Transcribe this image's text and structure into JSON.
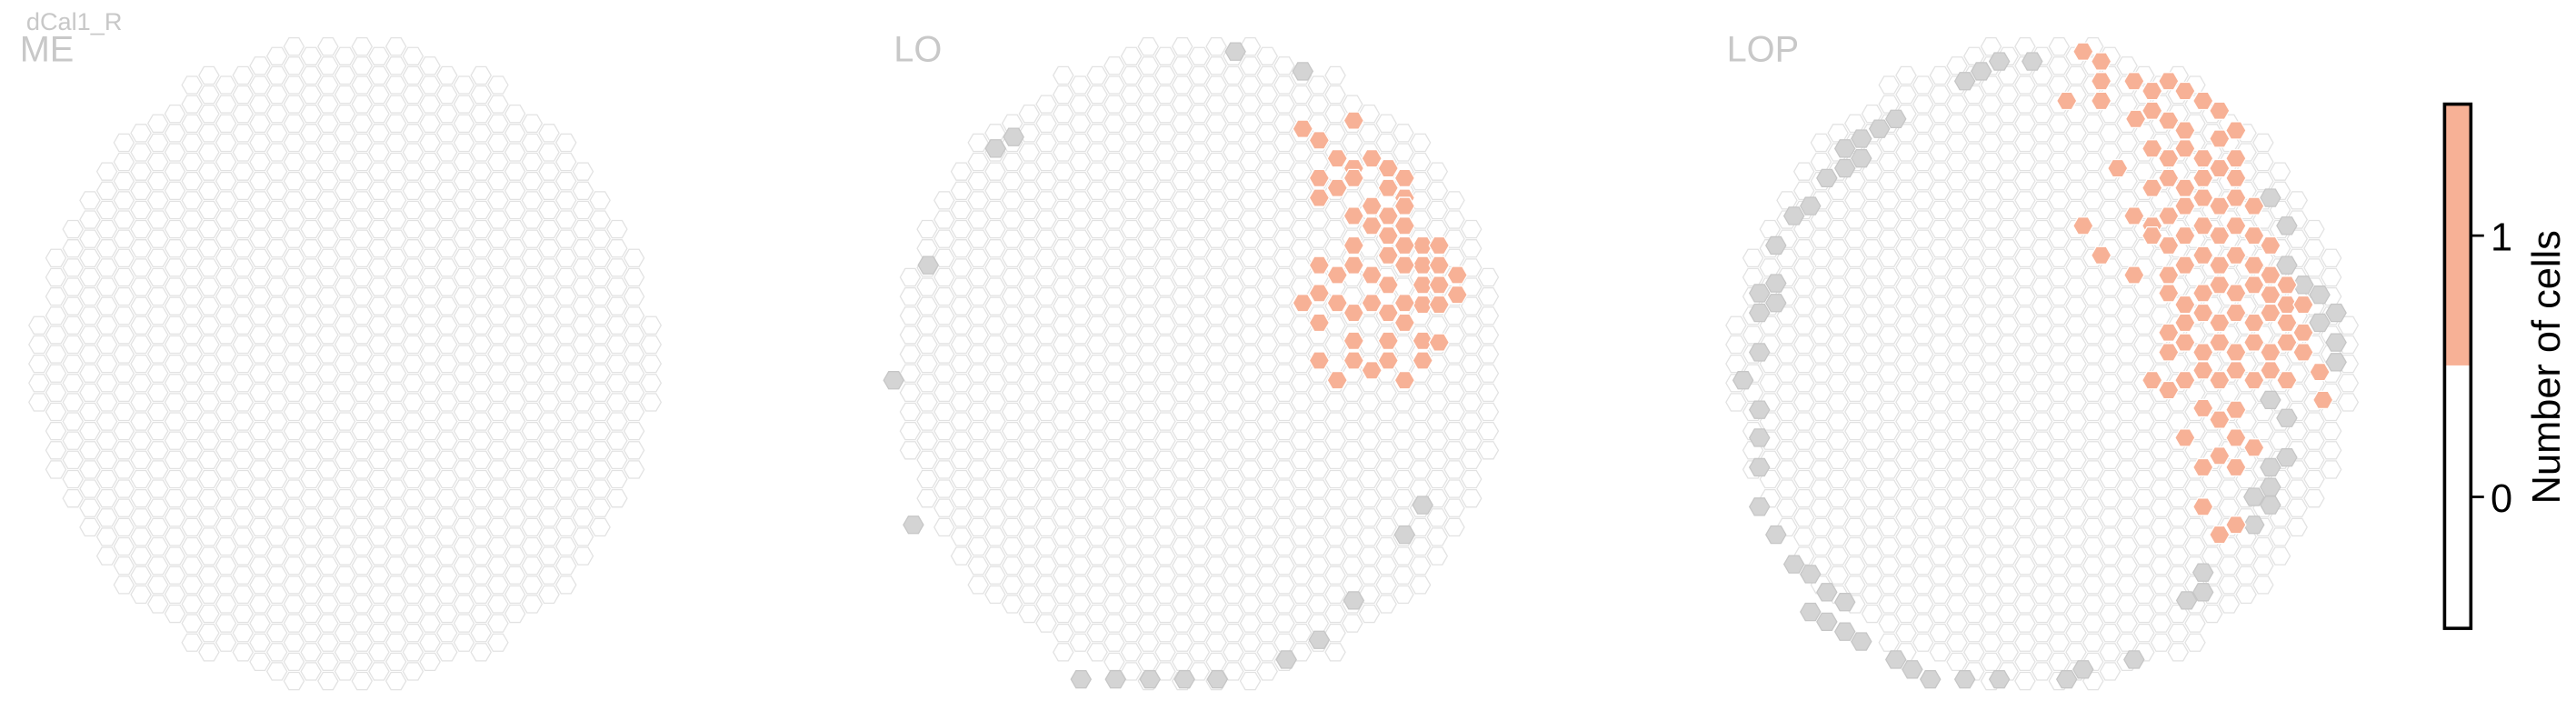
{
  "figure": {
    "title": "dCal1_R"
  },
  "colors": {
    "hex_outline": "#e2e2e2",
    "empty_fill": "#ffffff",
    "gray_fill": "#d4d4d4",
    "one_fill": "#f7b196",
    "cbar_outline": "#000000"
  },
  "chart_data": [
    {
      "type": "heatmap",
      "title": "ME",
      "description_of_cells": "hexagonal eye map; all columns 0 cells",
      "gray_hexes": [],
      "one_hexes": []
    },
    {
      "type": "heatmap",
      "title": "LO",
      "gray_hexes": [
        [
          752,
          28
        ],
        [
          793,
          40
        ],
        [
          606,
          87
        ],
        [
          617,
          80
        ],
        [
          565,
          158
        ],
        [
          544,
          228
        ],
        [
          556,
          316
        ],
        [
          866,
          304
        ],
        [
          855,
          322
        ],
        [
          824,
          362
        ],
        [
          803,
          386
        ],
        [
          783,
          398
        ],
        [
          658,
          410
        ],
        [
          679,
          410
        ],
        [
          700,
          410
        ],
        [
          721,
          410
        ],
        [
          741,
          410
        ]
      ],
      "one_hexes": [
        [
          793,
          75
        ],
        [
          803,
          82
        ],
        [
          824,
          70
        ],
        [
          814,
          93
        ],
        [
          824,
          99
        ],
        [
          835,
          93
        ],
        [
          845,
          99
        ],
        [
          855,
          105
        ],
        [
          803,
          105
        ],
        [
          814,
          111
        ],
        [
          824,
          105
        ],
        [
          845,
          111
        ],
        [
          855,
          117
        ],
        [
          803,
          117
        ],
        [
          824,
          128
        ],
        [
          835,
          122
        ],
        [
          845,
          128
        ],
        [
          855,
          122
        ],
        [
          866,
          146
        ],
        [
          876,
          146
        ],
        [
          835,
          134
        ],
        [
          845,
          140
        ],
        [
          855,
          134
        ],
        [
          866,
          158
        ],
        [
          876,
          158
        ],
        [
          887,
          164
        ],
        [
          824,
          146
        ],
        [
          845,
          152
        ],
        [
          855,
          146
        ],
        [
          866,
          170
        ],
        [
          876,
          170
        ],
        [
          803,
          158
        ],
        [
          814,
          164
        ],
        [
          824,
          158
        ],
        [
          835,
          164
        ],
        [
          845,
          170
        ],
        [
          855,
          158
        ],
        [
          866,
          182
        ],
        [
          876,
          182
        ],
        [
          887,
          176
        ],
        [
          793,
          181
        ],
        [
          803,
          175
        ],
        [
          814,
          181
        ],
        [
          824,
          187
        ],
        [
          835,
          181
        ],
        [
          845,
          187
        ],
        [
          855,
          181
        ],
        [
          803,
          193
        ],
        [
          824,
          204
        ],
        [
          845,
          204
        ],
        [
          855,
          193
        ],
        [
          866,
          204
        ],
        [
          876,
          205
        ],
        [
          803,
          216
        ],
        [
          814,
          228
        ],
        [
          824,
          216
        ],
        [
          835,
          222
        ],
        [
          845,
          216
        ],
        [
          855,
          228
        ],
        [
          866,
          216
        ]
      ]
    },
    {
      "type": "heatmap",
      "title": "LOP",
      "gray_hexes": [
        [
          1237,
          34
        ],
        [
          1217,
          34
        ],
        [
          1206,
          40
        ],
        [
          1196,
          46
        ],
        [
          1154,
          69
        ],
        [
          1144,
          75
        ],
        [
          1133,
          81
        ],
        [
          1123,
          87
        ],
        [
          1112,
          105
        ],
        [
          1123,
          99
        ],
        [
          1133,
          93
        ],
        [
          1102,
          122
        ],
        [
          1092,
          128
        ],
        [
          1081,
          146
        ],
        [
          1081,
          169
        ],
        [
          1081,
          181
        ],
        [
          1071,
          175
        ],
        [
          1071,
          187
        ],
        [
          1071,
          211
        ],
        [
          1061,
          228
        ],
        [
          1071,
          246
        ],
        [
          1071,
          263
        ],
        [
          1071,
          281
        ],
        [
          1071,
          305
        ],
        [
          1081,
          322
        ],
        [
          1092,
          340
        ],
        [
          1102,
          346
        ],
        [
          1112,
          357
        ],
        [
          1123,
          363
        ],
        [
          1102,
          369
        ],
        [
          1112,
          375
        ],
        [
          1123,
          381
        ],
        [
          1133,
          387
        ],
        [
          1154,
          398
        ],
        [
          1164,
          404
        ],
        [
          1175,
          410
        ],
        [
          1196,
          410
        ],
        [
          1217,
          410
        ],
        [
          1258,
          410
        ],
        [
          1268,
          404
        ],
        [
          1299,
          398
        ],
        [
          1341,
          357
        ],
        [
          1331,
          362
        ],
        [
          1341,
          345
        ],
        [
          1382,
          117
        ],
        [
          1392,
          134
        ],
        [
          1392,
          158
        ],
        [
          1402,
          170
        ],
        [
          1412,
          176
        ],
        [
          1412,
          193
        ],
        [
          1422,
          187
        ],
        [
          1422,
          205
        ],
        [
          1422,
          217
        ],
        [
          1392,
          275
        ],
        [
          1382,
          281
        ],
        [
          1382,
          293
        ],
        [
          1372,
          299
        ],
        [
          1382,
          304
        ],
        [
          1372,
          316
        ],
        [
          1392,
          251
        ],
        [
          1382,
          240
        ]
      ],
      "one_hexes": [
        [
          1268,
          28
        ],
        [
          1279,
          34
        ],
        [
          1258,
          58
        ],
        [
          1279,
          46
        ],
        [
          1279,
          58
        ],
        [
          1299,
          46
        ],
        [
          1310,
          52
        ],
        [
          1320,
          46
        ],
        [
          1330,
          52
        ],
        [
          1341,
          58
        ],
        [
          1310,
          64
        ],
        [
          1320,
          70
        ],
        [
          1351,
          64
        ],
        [
          1300,
          69
        ],
        [
          1330,
          76
        ],
        [
          1351,
          81
        ],
        [
          1361,
          76
        ],
        [
          1361,
          93
        ],
        [
          1289,
          99
        ],
        [
          1310,
          87
        ],
        [
          1320,
          93
        ],
        [
          1330,
          87
        ],
        [
          1341,
          93
        ],
        [
          1320,
          105
        ],
        [
          1310,
          111
        ],
        [
          1330,
          111
        ],
        [
          1341,
          105
        ],
        [
          1351,
          99
        ],
        [
          1361,
          105
        ],
        [
          1268,
          134
        ],
        [
          1279,
          152
        ],
        [
          1299,
          128
        ],
        [
          1310,
          134
        ],
        [
          1320,
          128
        ],
        [
          1330,
          122
        ],
        [
          1341,
          117
        ],
        [
          1351,
          122
        ],
        [
          1361,
          117
        ],
        [
          1372,
          122
        ],
        [
          1299,
          164
        ],
        [
          1310,
          140
        ],
        [
          1320,
          146
        ],
        [
          1330,
          140
        ],
        [
          1341,
          134
        ],
        [
          1351,
          140
        ],
        [
          1361,
          134
        ],
        [
          1372,
          140
        ],
        [
          1382,
          146
        ],
        [
          1320,
          164
        ],
        [
          1330,
          158
        ],
        [
          1341,
          152
        ],
        [
          1351,
          158
        ],
        [
          1361,
          152
        ],
        [
          1372,
          158
        ],
        [
          1382,
          164
        ],
        [
          1392,
          182
        ],
        [
          1320,
          175
        ],
        [
          1330,
          182
        ],
        [
          1341,
          175
        ],
        [
          1351,
          170
        ],
        [
          1361,
          175
        ],
        [
          1372,
          170
        ],
        [
          1382,
          176
        ],
        [
          1392,
          170
        ],
        [
          1402,
          182
        ],
        [
          1320,
          199
        ],
        [
          1330,
          193
        ],
        [
          1341,
          187
        ],
        [
          1351,
          193
        ],
        [
          1361,
          187
        ],
        [
          1372,
          193
        ],
        [
          1382,
          187
        ],
        [
          1392,
          193
        ],
        [
          1402,
          199
        ],
        [
          1320,
          211
        ],
        [
          1330,
          205
        ],
        [
          1341,
          211
        ],
        [
          1351,
          205
        ],
        [
          1361,
          211
        ],
        [
          1372,
          205
        ],
        [
          1382,
          211
        ],
        [
          1392,
          205
        ],
        [
          1402,
          211
        ],
        [
          1412,
          223
        ],
        [
          1310,
          228
        ],
        [
          1320,
          234
        ],
        [
          1330,
          228
        ],
        [
          1341,
          222
        ],
        [
          1351,
          228
        ],
        [
          1361,
          222
        ],
        [
          1372,
          228
        ],
        [
          1382,
          222
        ],
        [
          1392,
          228
        ],
        [
          1330,
          263
        ],
        [
          1341,
          245
        ],
        [
          1351,
          252
        ],
        [
          1361,
          246
        ],
        [
          1361,
          263
        ],
        [
          1372,
          269
        ],
        [
          1351,
          274
        ],
        [
          1361,
          281
        ],
        [
          1341,
          281
        ],
        [
          1341,
          305
        ],
        [
          1351,
          322
        ],
        [
          1361,
          316
        ],
        [
          1414,
          240
        ]
      ]
    },
    {
      "type": "colorbar",
      "label": "Number of cells",
      "ticks": [
        0,
        1
      ],
      "tick_labels": [
        "0",
        "1"
      ],
      "range": [
        -0.5,
        1.5
      ],
      "segments": [
        {
          "from": -0.5,
          "to": 0.5,
          "color": "#ffffff"
        },
        {
          "from": 0.5,
          "to": 1.5,
          "color": "#f7b196"
        }
      ]
    }
  ]
}
